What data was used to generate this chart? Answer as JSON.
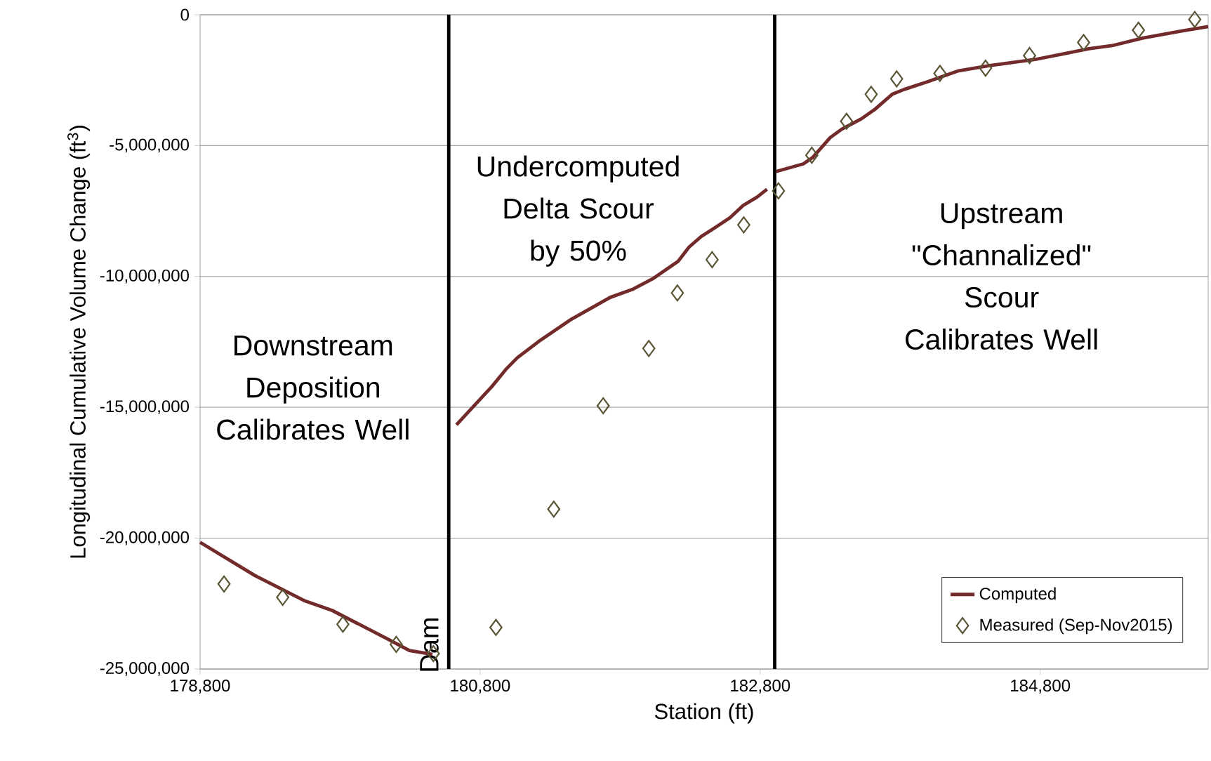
{
  "chart_data": {
    "type": "line",
    "xlabel": "Station (ft)",
    "ylabel": "Longitudinal Cumulative Volume Change (ft$^{3}$)",
    "xlim": [
      178800,
      186000
    ],
    "xticks": [
      {
        "value": 178800,
        "label": "178,800"
      },
      {
        "value": 180800,
        "label": "180,800"
      },
      {
        "value": 182800,
        "label": "182,800"
      },
      {
        "value": 184800,
        "label": "184,800"
      }
    ],
    "ylim": [
      -25000000,
      0
    ],
    "yticks": [
      {
        "value": -25000000,
        "label": "-25,000,000"
      },
      {
        "value": -20000000,
        "label": "-20,000,000"
      },
      {
        "value": -15000000,
        "label": "-15,000,000"
      },
      {
        "value": -10000000,
        "label": "-10,000,000"
      },
      {
        "value": -5000000,
        "label": "-5,000,000"
      },
      0
    ],
    "grid": "y",
    "legend": "bottom right",
    "series": [
      {
        "name": "Computed",
        "color": "#722a2a",
        "marker": "none",
        "line_style": "solid",
        "x": [
          178800,
          179192,
          179550,
          179743,
          180129,
          180295,
          180460,
          180576,
          180631,
          180885,
          180984,
          181067,
          181232,
          181453,
          181729,
          181894,
          182032,
          182214,
          182292,
          182380,
          182474,
          182584,
          182678,
          182777,
          182849,
          182904,
          182915,
          183108,
          183174,
          183301,
          183384,
          183522,
          183616,
          183743,
          183825,
          183991,
          184211,
          184432,
          184763,
          185149,
          185314,
          185535,
          185811,
          186000
        ],
        "values": [
          -20160000,
          -21430000,
          -22400000,
          -22760000,
          -23820000,
          -24290000,
          -24440000,
          null,
          -15670000,
          -14200000,
          -13550000,
          -13100000,
          -12430000,
          -11630000,
          -10800000,
          -10480000,
          -10090000,
          -9420000,
          -8880000,
          -8470000,
          -8150000,
          -7760000,
          -7290000,
          -6970000,
          -6670000,
          null,
          -5990000,
          -5700000,
          -5460000,
          -4690000,
          -4370000,
          -3980000,
          -3630000,
          -3040000,
          -2860000,
          -2570000,
          -2150000,
          -1950000,
          -1710000,
          -1300000,
          -1180000,
          -890000,
          -620000,
          -450000
        ]
      },
      {
        "name": "Measured (Sep-Nov2015)",
        "type": "scatter",
        "color": "#5a5535",
        "marker": "diamond",
        "x": [
          178971,
          179390,
          179820,
          180201,
          180466,
          180913,
          181326,
          181679,
          182005,
          182209,
          182457,
          182683,
          182931,
          183169,
          183417,
          183593,
          183775,
          184084,
          184410,
          184724,
          185110,
          185502,
          185904
        ],
        "values": [
          -21750000,
          -22260000,
          -23290000,
          -24060000,
          -24410000,
          -23410000,
          -18890000,
          -14940000,
          -12750000,
          -10630000,
          -9360000,
          -8030000,
          -6730000,
          -5370000,
          -4070000,
          -3040000,
          -2450000,
          -2240000,
          -2040000,
          -1560000,
          -1060000,
          -590000,
          -180000
        ]
      }
    ],
    "ref_lines": [
      {
        "axis": "x",
        "value": 180576,
        "label": "Dam",
        "color": "#000000",
        "line_style": "solid"
      },
      {
        "axis": "x",
        "value": 182904,
        "color": "#000000",
        "line_style": "solid"
      }
    ],
    "annotations": [
      "Downstream Deposition Calibrates Well",
      "Undercomputed Delta Scour by 50%",
      "Upstream \"Channalized\" Scour Calibrates Well"
    ]
  }
}
